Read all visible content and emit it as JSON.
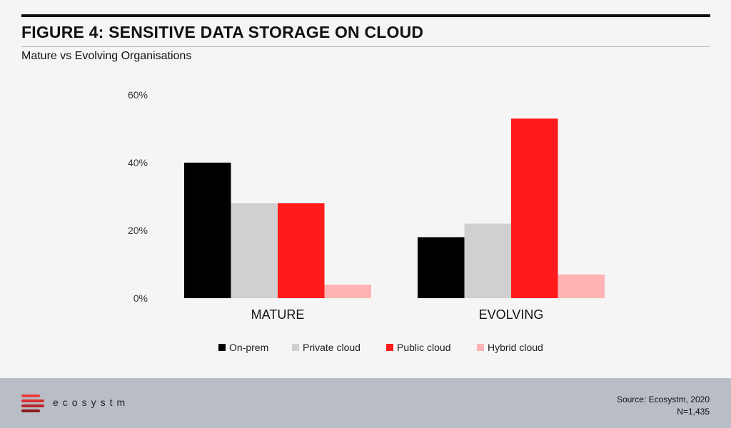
{
  "header": {
    "title": "FIGURE 4: SENSITIVE DATA STORAGE ON CLOUD",
    "subtitle": "Mature vs Evolving Organisations"
  },
  "chart_data": {
    "type": "bar",
    "categories": [
      "MATURE",
      "EVOLVING"
    ],
    "series": [
      {
        "name": "On-prem",
        "color": "#000000",
        "values": [
          40,
          18
        ]
      },
      {
        "name": "Private cloud",
        "color": "#d1cfcf",
        "values": [
          28,
          22
        ]
      },
      {
        "name": "Public cloud",
        "color": "#ff1b1b",
        "values": [
          28,
          53
        ]
      },
      {
        "name": "Hybrid cloud",
        "color": "#ffb3b3",
        "values": [
          4,
          7
        ]
      }
    ],
    "yticks": [
      "0%",
      "20%",
      "40%",
      "60%"
    ],
    "ylim": [
      0,
      60
    ],
    "grid": false,
    "legend_position": "bottom"
  },
  "footer": {
    "brand": "ecosystm",
    "source": "Source: Ecosystm, 2020",
    "sample": "N=1,435",
    "logo_colors": [
      "#e8403f",
      "#d5312f",
      "#b8242a",
      "#8e1b22"
    ]
  }
}
